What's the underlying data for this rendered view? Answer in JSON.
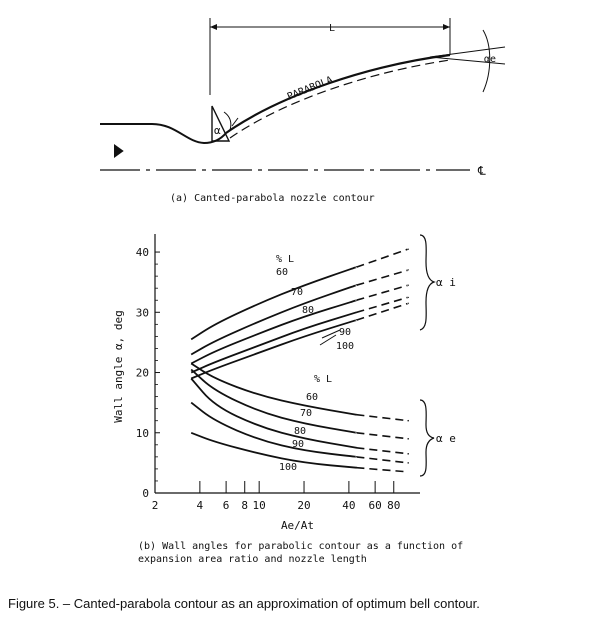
{
  "part_a": {
    "caption": "(a)  Canted-parabola nozzle contour",
    "label_length": "L",
    "label_parabola": "PARABOLA",
    "label_alpha": "α",
    "label_alpha_e": "αe",
    "label_centerline": "℄"
  },
  "part_b": {
    "caption": "(b)  Wall angles for parabolic contour as a function of expansion area ratio and nozzle length",
    "group_label_initial": "α i",
    "group_label_exit": "α e",
    "series_header": "% L"
  },
  "figure_caption": "Figure 5. – Canted-parabola contour as an approximation of optimum bell contour.",
  "chart_data": {
    "type": "line",
    "title": "",
    "xlabel": "Ae/At",
    "ylabel": "Wall angle α, deg",
    "x_scale": "log",
    "xlim": [
      2,
      120
    ],
    "ylim": [
      0,
      42
    ],
    "x_ticks": [
      "2",
      "4",
      "6",
      "8",
      "10",
      "20",
      "40",
      "60",
      "80"
    ],
    "y_ticks": [
      "0",
      "10",
      "20",
      "30",
      "40"
    ],
    "series_dashed_from_x": 45,
    "series": [
      {
        "name": "60",
        "group": "αi",
        "x": [
          3.5,
          5,
          10,
          20,
          45,
          100
        ],
        "y": [
          25.5,
          28,
          31.5,
          34.5,
          37.5,
          40.5
        ]
      },
      {
        "name": "70",
        "group": "αi",
        "x": [
          3.5,
          5,
          10,
          20,
          45,
          100
        ],
        "y": [
          23,
          25.2,
          28.5,
          31.5,
          34.5,
          37
        ]
      },
      {
        "name": "80",
        "group": "αi",
        "x": [
          3.5,
          5,
          10,
          20,
          45,
          100
        ],
        "y": [
          21.5,
          23.5,
          26.5,
          29.3,
          32,
          34.5
        ]
      },
      {
        "name": "90",
        "group": "αi",
        "x": [
          3.5,
          5,
          10,
          20,
          45,
          100
        ],
        "y": [
          20,
          21.7,
          24.5,
          27.3,
          30,
          32.5
        ]
      },
      {
        "name": "100",
        "group": "αi",
        "x": [
          3.5,
          5,
          10,
          20,
          45,
          100
        ],
        "y": [
          19,
          20.6,
          23.3,
          26,
          28.7,
          31.5
        ]
      },
      {
        "name": "60",
        "group": "αe",
        "x": [
          3.5,
          5,
          10,
          20,
          45,
          100
        ],
        "y": [
          21.5,
          19,
          16.2,
          14.5,
          13,
          12
        ]
      },
      {
        "name": "70",
        "group": "αe",
        "x": [
          3.5,
          5,
          10,
          20,
          45,
          100
        ],
        "y": [
          20.5,
          17,
          13.5,
          11.5,
          10,
          9
        ]
      },
      {
        "name": "80",
        "group": "αe",
        "x": [
          3.5,
          5,
          10,
          20,
          45,
          100
        ],
        "y": [
          19,
          14.5,
          11,
          9,
          7.5,
          6.5
        ]
      },
      {
        "name": "90",
        "group": "αe",
        "x": [
          3.5,
          5,
          10,
          20,
          45,
          100
        ],
        "y": [
          15,
          12,
          8.8,
          7,
          6,
          5
        ]
      },
      {
        "name": "100",
        "group": "αe",
        "x": [
          3.5,
          5,
          10,
          20,
          45,
          100
        ],
        "y": [
          10,
          8.5,
          6.5,
          5,
          4.2,
          3.5
        ]
      }
    ]
  }
}
